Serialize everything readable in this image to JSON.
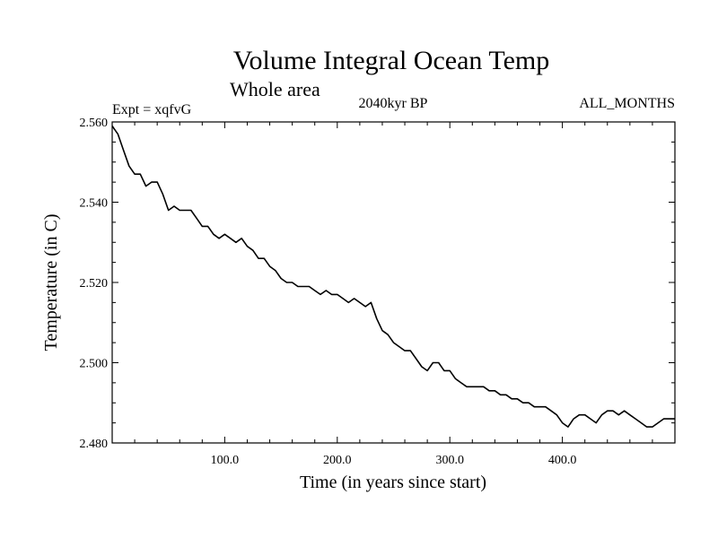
{
  "chart_data": {
    "type": "line",
    "title": "Volume Integral Ocean Temp",
    "subtitle": "Whole area",
    "left_label": "Expt = xqfvG",
    "center_label": "2040kyr BP",
    "right_label": "ALL_MONTHS",
    "xlabel": "Time (in years since start)",
    "ylabel": "Temperature (in C)",
    "xlim": [
      0,
      500
    ],
    "ylim": [
      2.48,
      2.56
    ],
    "xticks": [
      100,
      200,
      300,
      400
    ],
    "xtick_labels": [
      "100.0",
      "200.0",
      "300.0",
      "400.0"
    ],
    "yticks": [
      2.48,
      2.5,
      2.52,
      2.54,
      2.56
    ],
    "ytick_labels": [
      "2.480",
      "2.500",
      "2.520",
      "2.540",
      "2.560"
    ],
    "grid": false,
    "series": [
      {
        "name": "Temperature",
        "color": "#000000",
        "x": [
          0,
          5,
          10,
          15,
          20,
          25,
          30,
          35,
          40,
          45,
          50,
          55,
          60,
          65,
          70,
          75,
          80,
          85,
          90,
          95,
          100,
          105,
          110,
          115,
          120,
          125,
          130,
          135,
          140,
          145,
          150,
          155,
          160,
          165,
          170,
          175,
          180,
          185,
          190,
          195,
          200,
          205,
          210,
          215,
          220,
          225,
          230,
          235,
          240,
          245,
          250,
          255,
          260,
          265,
          270,
          275,
          280,
          285,
          290,
          295,
          300,
          305,
          310,
          315,
          320,
          325,
          330,
          335,
          340,
          345,
          350,
          355,
          360,
          365,
          370,
          375,
          380,
          385,
          390,
          395,
          400,
          405,
          410,
          415,
          420,
          425,
          430,
          435,
          440,
          445,
          450,
          455,
          460,
          465,
          470,
          475,
          480,
          485,
          490,
          495,
          500
        ],
        "y": [
          2.559,
          2.557,
          2.553,
          2.549,
          2.547,
          2.547,
          2.544,
          2.545,
          2.545,
          2.542,
          2.538,
          2.539,
          2.538,
          2.538,
          2.538,
          2.536,
          2.534,
          2.534,
          2.532,
          2.531,
          2.532,
          2.531,
          2.53,
          2.531,
          2.529,
          2.528,
          2.526,
          2.526,
          2.524,
          2.523,
          2.521,
          2.52,
          2.52,
          2.519,
          2.519,
          2.519,
          2.518,
          2.517,
          2.518,
          2.517,
          2.517,
          2.516,
          2.515,
          2.516,
          2.515,
          2.514,
          2.515,
          2.511,
          2.508,
          2.507,
          2.505,
          2.504,
          2.503,
          2.503,
          2.501,
          2.499,
          2.498,
          2.5,
          2.5,
          2.498,
          2.498,
          2.496,
          2.495,
          2.494,
          2.494,
          2.494,
          2.494,
          2.493,
          2.493,
          2.492,
          2.492,
          2.491,
          2.491,
          2.49,
          2.49,
          2.489,
          2.489,
          2.489,
          2.488,
          2.487,
          2.485,
          2.484,
          2.486,
          2.487,
          2.487,
          2.486,
          2.485,
          2.487,
          2.488,
          2.488,
          2.487,
          2.488,
          2.487,
          2.486,
          2.485,
          2.484,
          2.484,
          2.485,
          2.486,
          2.486,
          2.486
        ]
      }
    ]
  }
}
